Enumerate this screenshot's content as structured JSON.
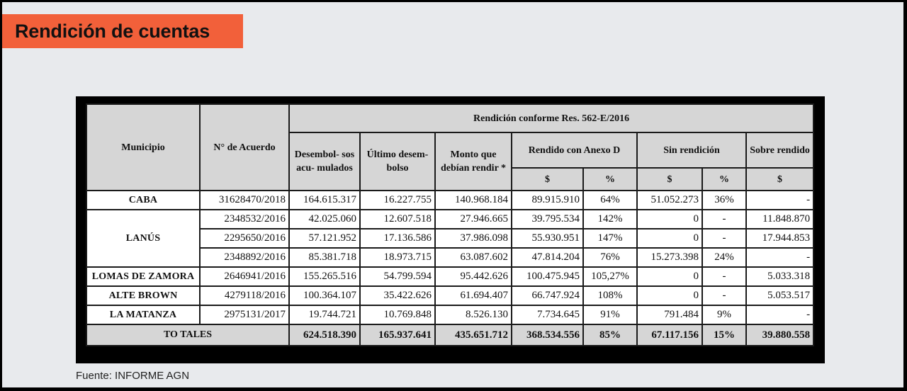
{
  "title": "Rendición de cuentas",
  "table": {
    "headers": {
      "municipio": "Municipio",
      "acuerdo": "N° de Acuerdo",
      "group": "Rendición conforme Res. 562-E/2016",
      "desembolsos": "Desembol- sos acu- mulados",
      "ultimo": "Último desem- bolso",
      "monto": "Monto que debían rendir *",
      "rendido": "Rendido con Anexo D",
      "sin": "Sin rendición",
      "sobre": "Sobre rendido",
      "sub_rendido_pesos": "$",
      "sub_rendido_pct": "%",
      "sub_sin_pesos": "$",
      "sub_sin_pct": "%",
      "sub_sobre_pesos": "$"
    },
    "municipalities": [
      "CABA",
      "LANÚS",
      "LOMAS DE ZAMORA",
      "ALTE BROWN",
      "LA MATANZA"
    ],
    "rows": [
      {
        "acuerdo": "31628470/2018",
        "desembolsos": "164.615.317",
        "ultimo": "16.227.755",
        "monto": "140.968.184",
        "rendido": "89.915.910",
        "rendido_pct": "64%",
        "sin": "51.052.273",
        "sin_pct": "36%",
        "sobre": "-"
      },
      {
        "acuerdo": "2348532/2016",
        "desembolsos": "42.025.060",
        "ultimo": "12.607.518",
        "monto": "27.946.665",
        "rendido": "39.795.534",
        "rendido_pct": "142%",
        "sin": "0",
        "sin_pct": "-",
        "sobre": "11.848.870"
      },
      {
        "acuerdo": "2295650/2016",
        "desembolsos": "57.121.952",
        "ultimo": "17.136.586",
        "monto": "37.986.098",
        "rendido": "55.930.951",
        "rendido_pct": "147%",
        "sin": "0",
        "sin_pct": "-",
        "sobre": "17.944.853"
      },
      {
        "acuerdo": "2348892/2016",
        "desembolsos": "85.381.718",
        "ultimo": "18.973.715",
        "monto": "63.087.602",
        "rendido": "47.814.204",
        "rendido_pct": "76%",
        "sin": "15.273.398",
        "sin_pct": "24%",
        "sobre": "-"
      },
      {
        "acuerdo": "2646941/2016",
        "desembolsos": "155.265.516",
        "ultimo": "54.799.594",
        "monto": "95.442.626",
        "rendido": "100.475.945",
        "rendido_pct": "105,27%",
        "sin": "0",
        "sin_pct": "-",
        "sobre": "5.033.318"
      },
      {
        "acuerdo": "4279118/2016",
        "desembolsos": "100.364.107",
        "ultimo": "35.422.626",
        "monto": "61.694.407",
        "rendido": "66.747.924",
        "rendido_pct": "108%",
        "sin": "0",
        "sin_pct": "-",
        "sobre": "5.053.517"
      },
      {
        "acuerdo": "2975131/2017",
        "desembolsos": "19.744.721",
        "ultimo": "10.769.848",
        "monto": "8.526.130",
        "rendido": "7.734.645",
        "rendido_pct": "91%",
        "sin": "791.484",
        "sin_pct": "9%",
        "sobre": "-"
      }
    ],
    "totals": {
      "label": "TO TALES",
      "desembolsos": "624.518.390",
      "ultimo": "165.937.641",
      "monto": "435.651.712",
      "rendido": "368.534.556",
      "rendido_pct": "85%",
      "sin": "67.117.156",
      "sin_pct": "15%",
      "sobre": "39.880.558"
    }
  },
  "source": "Fuente: INFORME AGN",
  "colors": {
    "accent": "#f2603a",
    "header_bg": "#d6d6d6",
    "page_bg": "#e8eaed"
  }
}
